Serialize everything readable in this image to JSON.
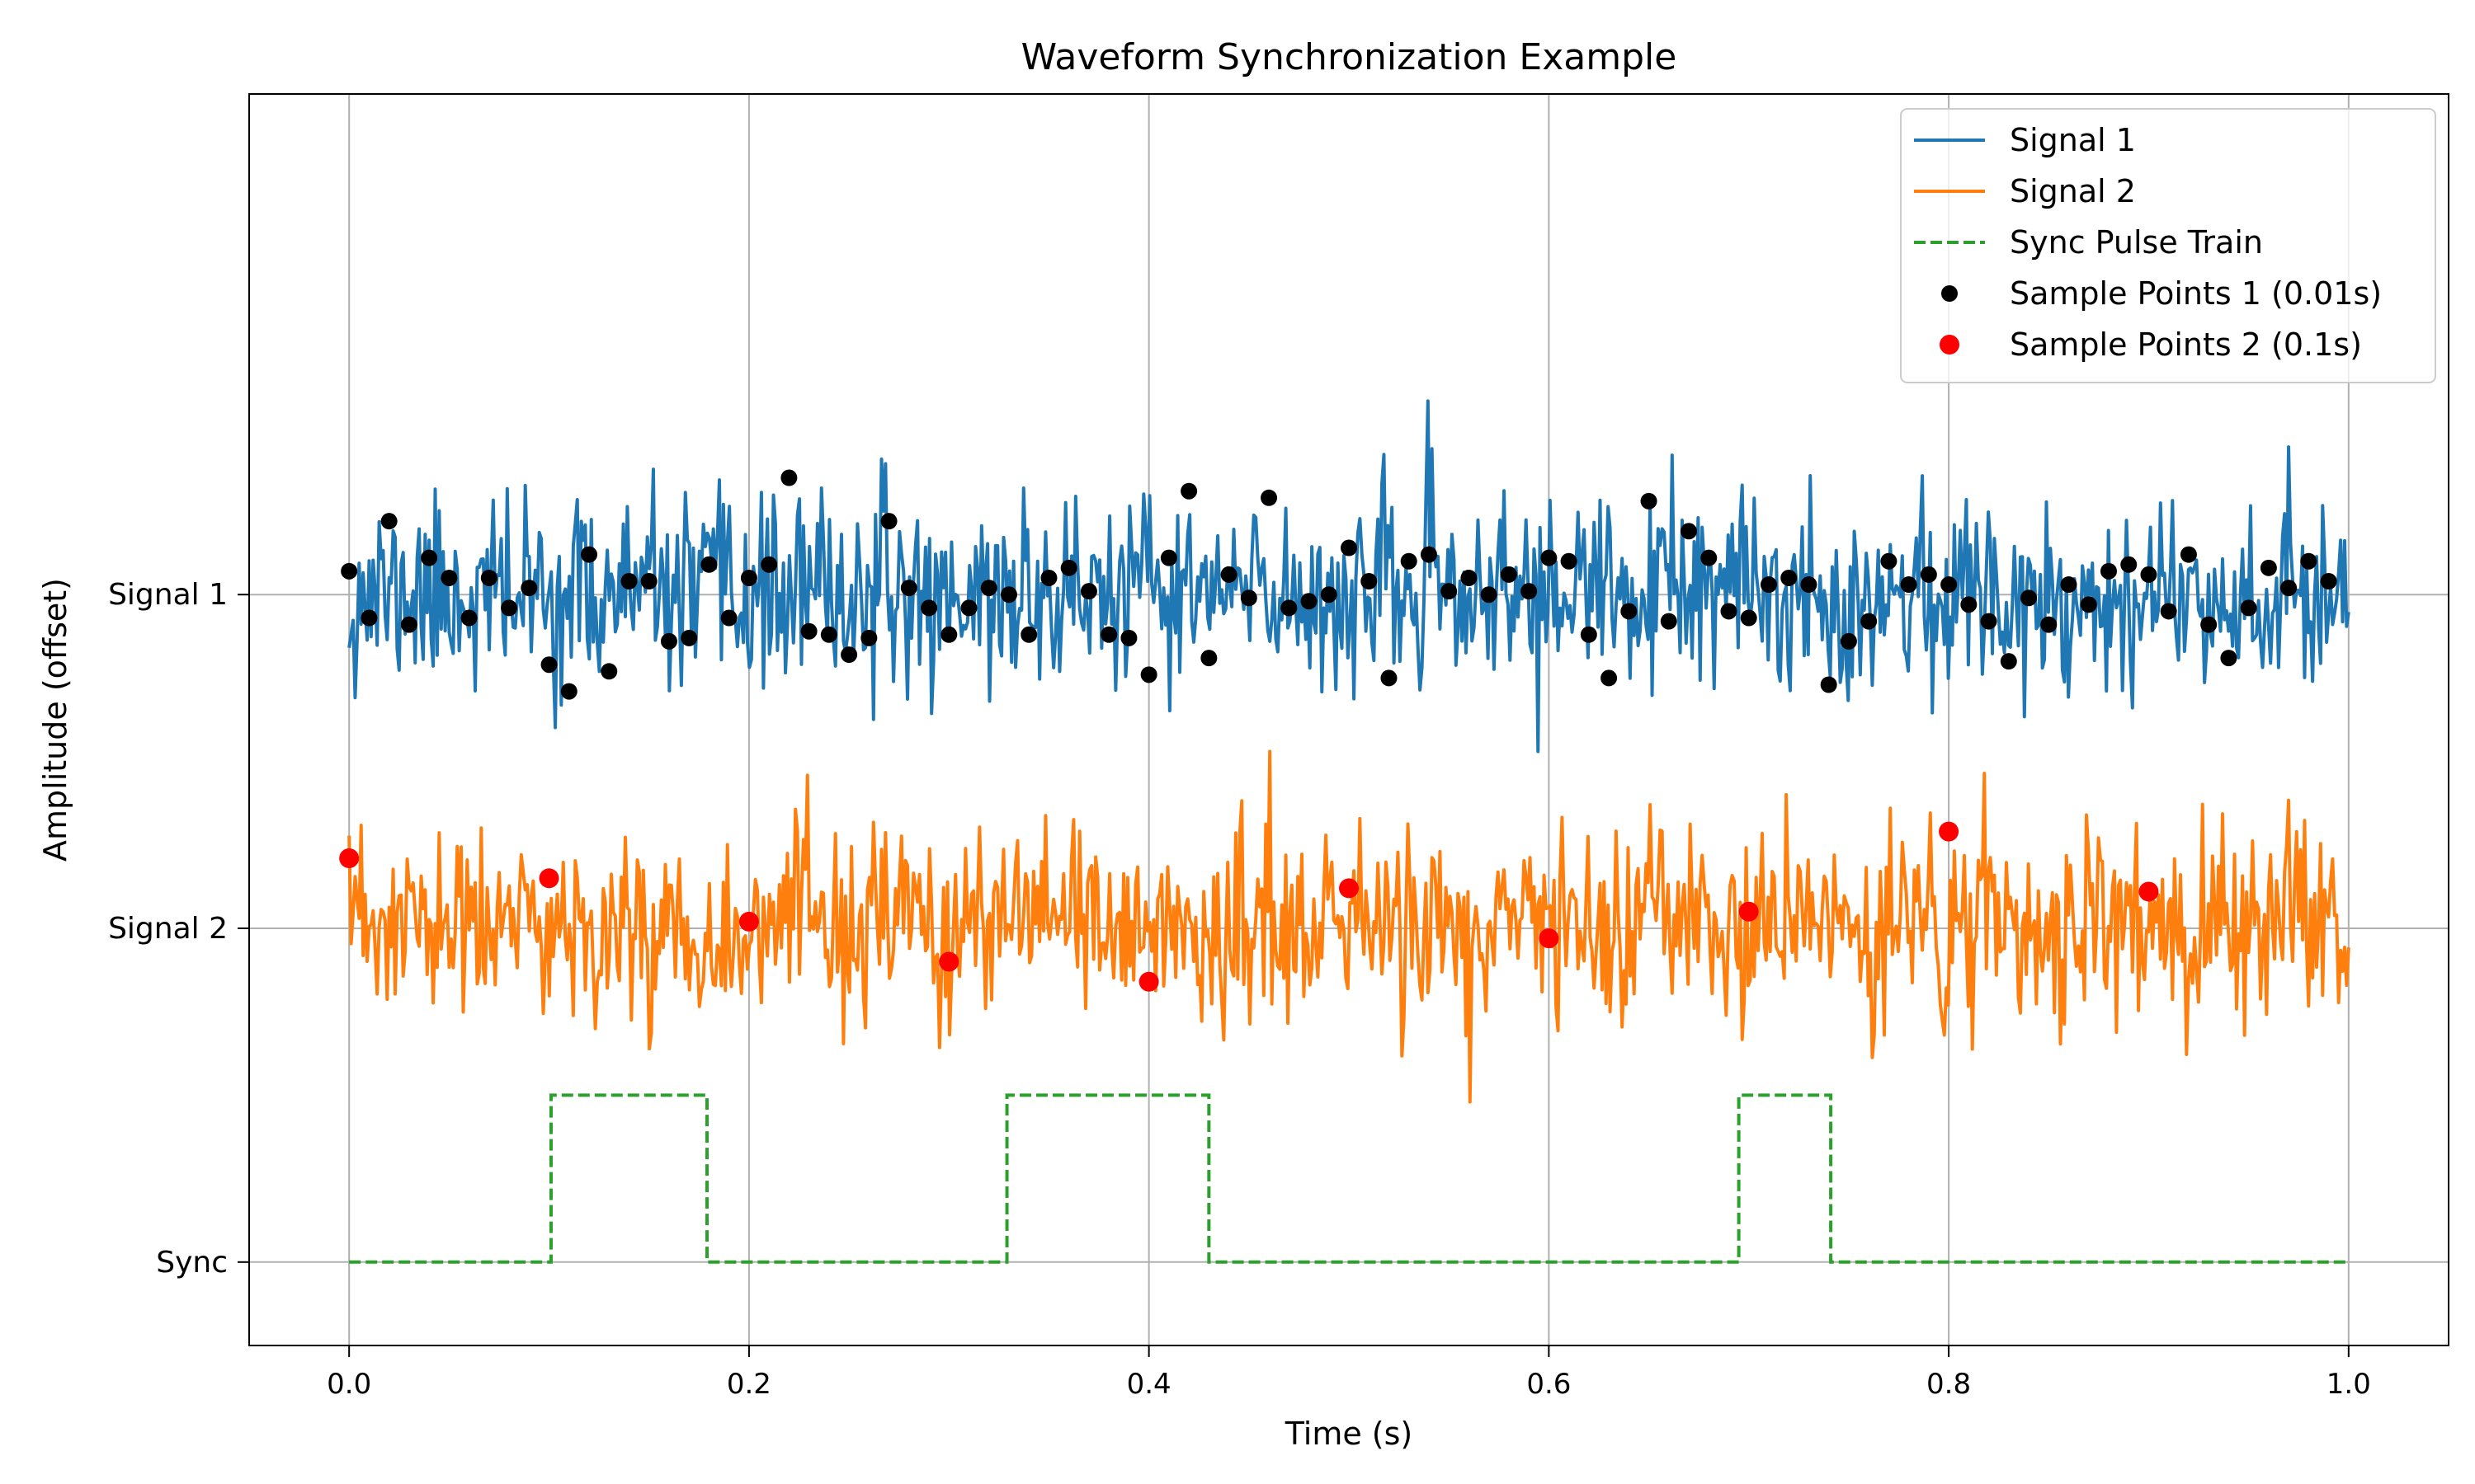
{
  "chart_data": {
    "type": "line",
    "title": "Waveform Synchronization Example",
    "xlabel": "Time (s)",
    "ylabel": "Amplitude (offset)",
    "xlim": [
      -0.05,
      1.05
    ],
    "ylim": [
      -0.25,
      3.5
    ],
    "grid": true,
    "legend_position": "top-right",
    "x_ticks": [
      0.0,
      0.2,
      0.4,
      0.6,
      0.8,
      1.0
    ],
    "x_tick_labels": [
      "0.0",
      "0.2",
      "0.4",
      "0.6",
      "0.8",
      "1.0"
    ],
    "y_ticks": [
      0,
      1,
      2
    ],
    "y_tick_labels": [
      "Sync",
      "Signal 2",
      "Signal 1"
    ],
    "series": [
      {
        "name": "Signal 1",
        "kind": "line",
        "color": "#1f77b4",
        "style": "solid",
        "center": 2.0,
        "amplitude": 0.14,
        "spike_min": 1.53,
        "spike_max": 2.58,
        "seed": 11,
        "n": 1000,
        "x_range": [
          0.0,
          1.0
        ]
      },
      {
        "name": "Signal 2",
        "kind": "line",
        "color": "#ff7f0e",
        "style": "solid",
        "center": 1.0,
        "amplitude": 0.14,
        "spike_min": 0.48,
        "spike_max": 1.53,
        "seed": 23,
        "n": 1000,
        "x_range": [
          0.0,
          1.0
        ]
      },
      {
        "name": "Sync Pulse Train",
        "kind": "step",
        "color": "#2ca02c",
        "style": "dashed",
        "x": [
          0.0,
          0.101,
          0.101,
          0.179,
          0.179,
          0.329,
          0.329,
          0.43,
          0.43,
          0.695,
          0.695,
          0.741,
          0.741,
          1.0
        ],
        "y": [
          0.0,
          0.0,
          0.5,
          0.5,
          0.0,
          0.0,
          0.5,
          0.5,
          0.0,
          0.0,
          0.5,
          0.5,
          0.0,
          0.0
        ]
      },
      {
        "name": "Sample Points 1 (0.01s)",
        "kind": "scatter",
        "color": "#000000",
        "x": [
          0.0,
          0.01,
          0.02,
          0.03,
          0.04,
          0.05,
          0.06,
          0.07,
          0.08,
          0.09,
          0.1,
          0.11,
          0.12,
          0.13,
          0.14,
          0.15,
          0.16,
          0.17,
          0.18,
          0.19,
          0.2,
          0.21,
          0.22,
          0.23,
          0.24,
          0.25,
          0.26,
          0.27,
          0.28,
          0.29,
          0.3,
          0.31,
          0.32,
          0.33,
          0.34,
          0.35,
          0.36,
          0.37,
          0.38,
          0.39,
          0.4,
          0.41,
          0.42,
          0.43,
          0.44,
          0.45,
          0.46,
          0.47,
          0.48,
          0.49,
          0.5,
          0.51,
          0.52,
          0.53,
          0.54,
          0.55,
          0.56,
          0.57,
          0.58,
          0.59,
          0.6,
          0.61,
          0.62,
          0.63,
          0.64,
          0.65,
          0.66,
          0.67,
          0.68,
          0.69,
          0.7,
          0.71,
          0.72,
          0.73,
          0.74,
          0.75,
          0.76,
          0.77,
          0.78,
          0.79,
          0.8,
          0.81,
          0.82,
          0.83,
          0.84,
          0.85,
          0.86,
          0.87,
          0.88,
          0.89,
          0.9,
          0.91,
          0.92,
          0.93,
          0.94,
          0.95,
          0.96,
          0.97,
          0.98,
          0.99
        ],
        "y": [
          2.07,
          1.93,
          2.22,
          1.91,
          2.11,
          2.05,
          1.93,
          2.05,
          1.96,
          2.02,
          1.79,
          1.71,
          2.12,
          1.77,
          2.04,
          2.04,
          1.86,
          1.87,
          2.09,
          1.93,
          2.05,
          2.09,
          2.35,
          1.89,
          1.88,
          1.82,
          1.87,
          2.22,
          2.02,
          1.96,
          1.88,
          1.96,
          2.02,
          2.0,
          1.88,
          2.05,
          2.08,
          2.01,
          1.88,
          1.87,
          1.76,
          2.11,
          2.31,
          1.81,
          2.06,
          1.99,
          2.29,
          1.96,
          1.98,
          2.0,
          2.14,
          2.04,
          1.75,
          2.1,
          2.12,
          2.01,
          2.05,
          2.0,
          2.06,
          2.01,
          2.11,
          2.1,
          1.88,
          1.75,
          1.95,
          2.28,
          1.92,
          2.19,
          2.11,
          1.95,
          1.93,
          2.03,
          2.05,
          2.03,
          1.73,
          1.86,
          1.92,
          2.1,
          2.03,
          2.06,
          2.03,
          1.97,
          1.92,
          1.8,
          1.99,
          1.91,
          2.03,
          1.97,
          2.07,
          2.09,
          2.06,
          1.95,
          2.12,
          1.91,
          1.81,
          1.96,
          2.08,
          2.02,
          2.1,
          2.04
        ]
      },
      {
        "name": "Sample Points 2 (0.1s)",
        "kind": "scatter",
        "color": "#ff0000",
        "x": [
          0.0,
          0.1,
          0.2,
          0.3,
          0.4,
          0.5,
          0.6,
          0.7,
          0.8,
          0.9
        ],
        "y": [
          1.21,
          1.15,
          1.02,
          0.9,
          0.84,
          1.12,
          0.97,
          1.05,
          1.29,
          1.11
        ]
      }
    ]
  }
}
